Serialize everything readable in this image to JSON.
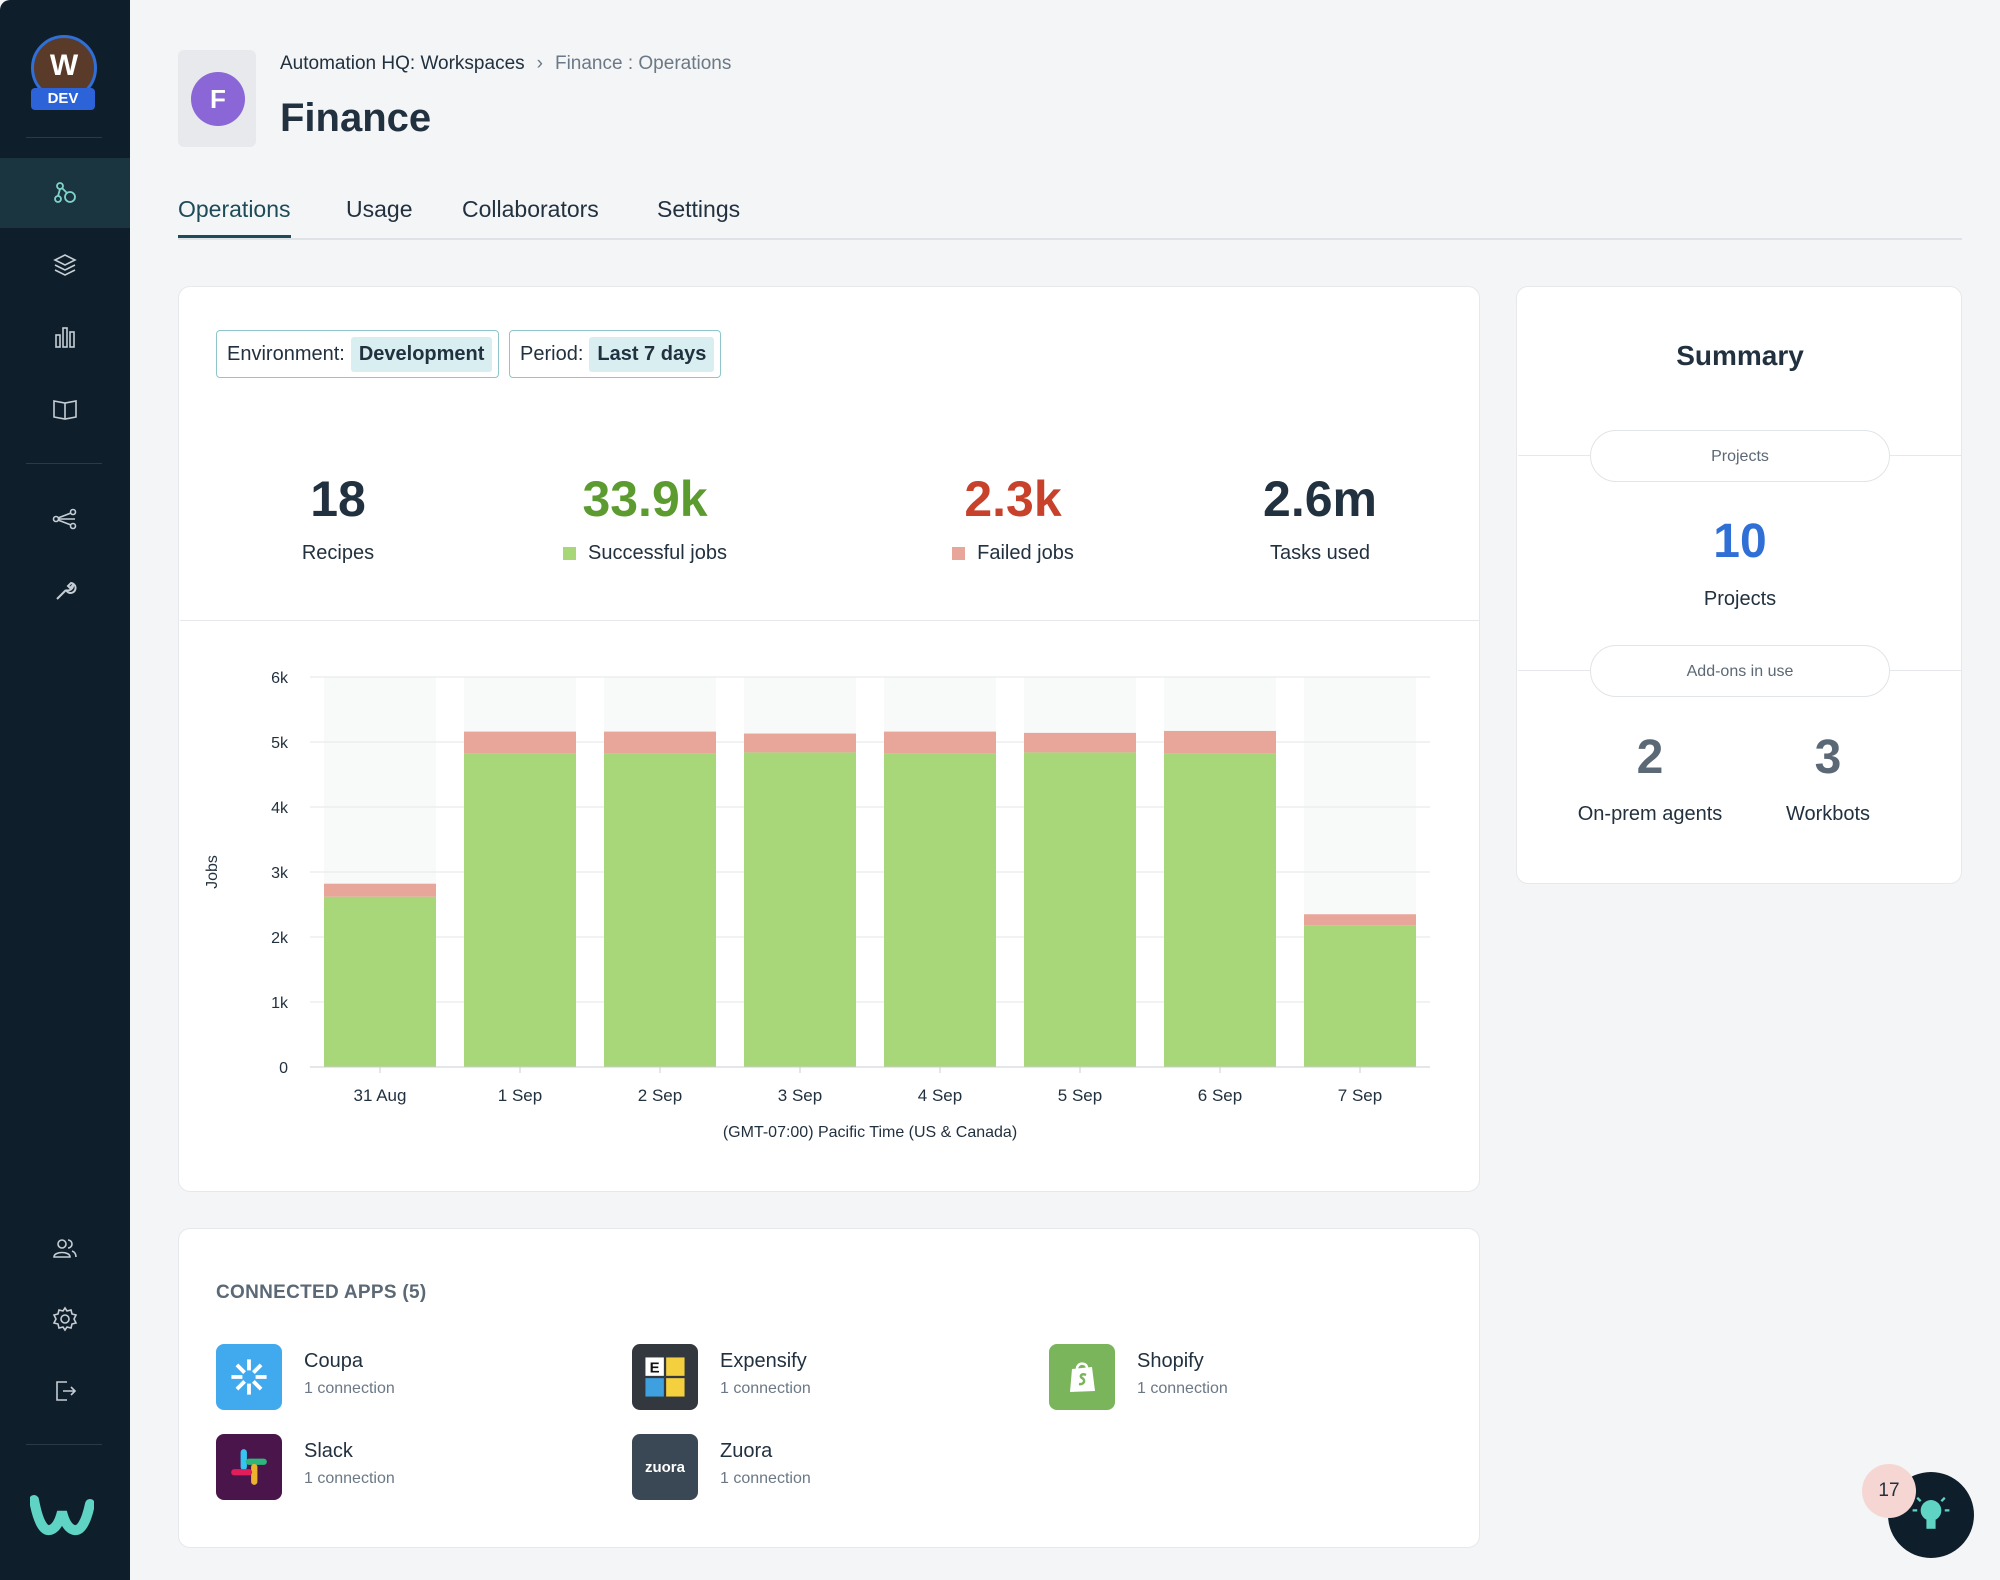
{
  "workspace": {
    "avatar_letter": "W",
    "badge": "DEV"
  },
  "sidebar": {
    "items": [
      {
        "name": "agent-hub-icon",
        "active": true
      },
      {
        "name": "layers-icon"
      },
      {
        "name": "bar-chart-icon"
      },
      {
        "name": "book-icon"
      },
      {
        "name": "share-network-icon"
      },
      {
        "name": "wrench-icon"
      },
      {
        "name": "users-icon"
      },
      {
        "name": "gear-icon"
      },
      {
        "name": "logout-icon"
      }
    ]
  },
  "header": {
    "tile_letter": "F",
    "breadcrumb": {
      "root": "Automation HQ: Workspaces",
      "separator": "›",
      "current": "Finance : Operations"
    },
    "title": "Finance"
  },
  "tabs": [
    {
      "label": "Operations",
      "active": true
    },
    {
      "label": "Usage"
    },
    {
      "label": "Collaborators"
    },
    {
      "label": "Settings"
    }
  ],
  "filters": {
    "environment": {
      "label": "Environment:",
      "value": "Development"
    },
    "period": {
      "label": "Period:",
      "value": "Last 7 days"
    }
  },
  "kpis": [
    {
      "value": "18",
      "label": "Recipes",
      "color": "#22313f"
    },
    {
      "value": "33.9k",
      "label": "Successful jobs",
      "color": "#5c9b2f",
      "marker": "#a8d77a"
    },
    {
      "value": "2.3k",
      "label": "Failed jobs",
      "color": "#c8412b",
      "marker": "#e8a59a"
    },
    {
      "value": "2.6m",
      "label": "Tasks used",
      "color": "#22313f"
    }
  ],
  "chart_data": {
    "type": "bar",
    "stacked": true,
    "categories": [
      "31 Aug",
      "1 Sep",
      "2 Sep",
      "3 Sep",
      "4 Sep",
      "5 Sep",
      "6 Sep",
      "7 Sep"
    ],
    "series": [
      {
        "name": "Successful jobs",
        "color": "#a8d77a",
        "values": [
          2620,
          4830,
          4830,
          4840,
          4830,
          4840,
          4830,
          2180
        ]
      },
      {
        "name": "Failed jobs",
        "color": "#e8a59a",
        "values": [
          200,
          330,
          330,
          290,
          330,
          300,
          340,
          170
        ]
      }
    ],
    "ylabel": "Jobs",
    "xlabel": "(GMT-07:00) Pacific Time (US & Canada)",
    "ylim": [
      0,
      6000
    ],
    "yticks": [
      {
        "v": 0,
        "label": "0"
      },
      {
        "v": 1000,
        "label": "1k"
      },
      {
        "v": 2000,
        "label": "2k"
      },
      {
        "v": 3000,
        "label": "3k"
      },
      {
        "v": 4000,
        "label": "4k"
      },
      {
        "v": 5000,
        "label": "5k"
      },
      {
        "v": 6000,
        "label": "6k"
      }
    ],
    "grid": true
  },
  "summary": {
    "title": "Summary",
    "projects_pill": "Projects",
    "projects_value": "10",
    "projects_label": "Projects",
    "addons_pill": "Add-ons in use",
    "onprem_value": "2",
    "onprem_label": "On-prem agents",
    "workbots_value": "3",
    "workbots_label": "Workbots",
    "accent": "#2f6fd6"
  },
  "connected_apps": {
    "title": "CONNECTED APPS (5)",
    "items": [
      {
        "name": "Coupa",
        "sub": "1 connection"
      },
      {
        "name": "Expensify",
        "sub": "1 connection"
      },
      {
        "name": "Shopify",
        "sub": "1 connection"
      },
      {
        "name": "Slack",
        "sub": "1 connection"
      },
      {
        "name": "Zuora",
        "sub": "1 connection",
        "logo_text": "zuora"
      }
    ],
    "expensify_logo_letter": "E"
  },
  "notifications": {
    "count": "17"
  }
}
